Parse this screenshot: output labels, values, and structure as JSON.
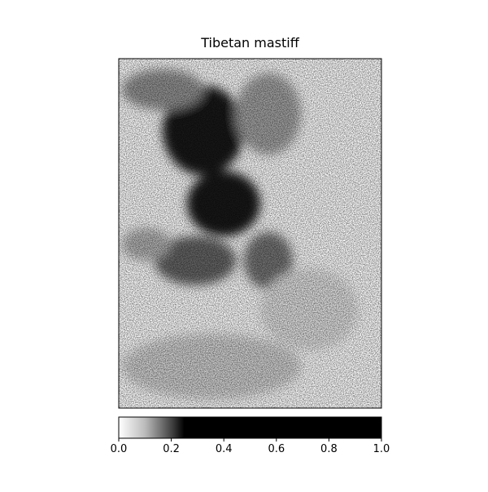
{
  "chart_data": {
    "type": "image",
    "title": "Tibetan mastiff",
    "cmap": "gray_r",
    "colorbar": {
      "clim": [
        0,
        1
      ],
      "ticks": [
        {
          "value": 0,
          "label": "0.0"
        },
        0.2,
        0.4,
        0.6,
        0.8,
        {
          "value": 1,
          "label": "1.0"
        }
      ]
    }
  }
}
